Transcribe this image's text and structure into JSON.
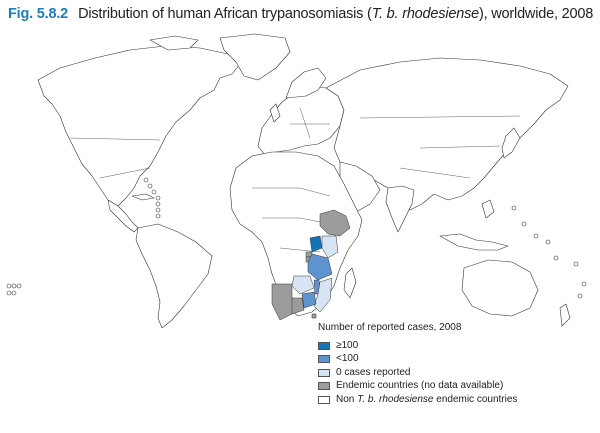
{
  "figure": {
    "number": "Fig. 5.8.2",
    "title_prefix": "Distribution of human African trypanosomiasis (",
    "title_species": "T. b. rhodesiense",
    "title_suffix": "), worldwide, 2008"
  },
  "colors": {
    "high": "#1773b8",
    "low": "#5f93cf",
    "zero": "#d7e4f3",
    "endemic_no_data": "#9c9c9c",
    "non_endemic": "#ffffff",
    "fig_label": "#1a7fc1"
  },
  "legend": {
    "heading": "Number of reported cases, 2008",
    "items": [
      {
        "key": "high",
        "label": "≥100"
      },
      {
        "key": "low",
        "label": "<100"
      },
      {
        "key": "zero",
        "label": "0 cases reported"
      },
      {
        "key": "endemic_no_data",
        "label": "Endemic countries (no data available)"
      },
      {
        "key": "non_endemic",
        "label_prefix": "Non ",
        "label_species": "T. b. rhodesiense",
        "label_suffix": " endemic countries"
      }
    ]
  },
  "map_regions": [
    {
      "name": "Uganda",
      "category": "high"
    },
    {
      "name": "United Republic of Tanzania",
      "category": "low"
    },
    {
      "name": "Malawi",
      "category": "low"
    },
    {
      "name": "Zambia",
      "category": "zero"
    },
    {
      "name": "Kenya",
      "category": "zero"
    },
    {
      "name": "Mozambique",
      "category": "zero"
    },
    {
      "name": "Zimbabwe",
      "category": "low"
    },
    {
      "name": "Ethiopia",
      "category": "endemic_no_data"
    },
    {
      "name": "Botswana",
      "category": "endemic_no_data"
    },
    {
      "name": "Namibia",
      "category": "endemic_no_data"
    },
    {
      "name": "Burundi",
      "category": "endemic_no_data"
    },
    {
      "name": "Rwanda",
      "category": "endemic_no_data"
    },
    {
      "name": "Swaziland",
      "category": "endemic_no_data"
    }
  ]
}
